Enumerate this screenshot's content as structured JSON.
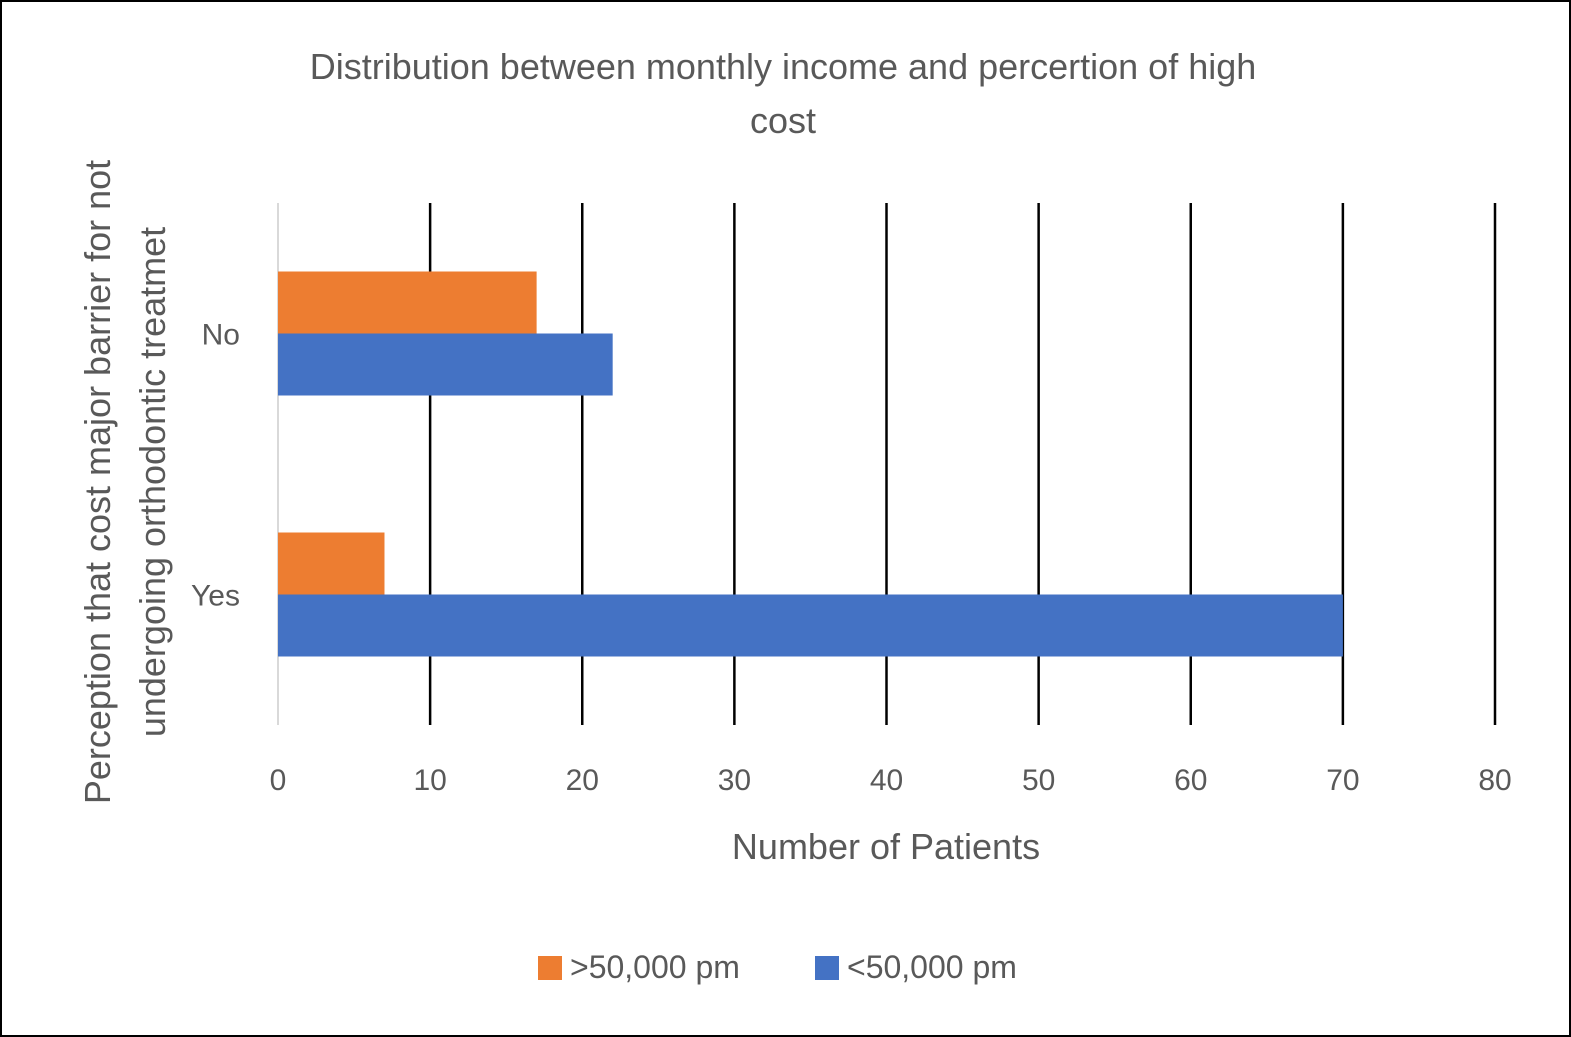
{
  "chart_data": {
    "type": "bar",
    "orientation": "horizontal",
    "title_lines": [
      "Distribution between monthly income and percertion of  high",
      "cost"
    ],
    "xlabel": "Number of Patients",
    "ylabel_lines": [
      "Perception that cost major barrier for not",
      "undergoing orthodontic treatmet"
    ],
    "categories": [
      "No",
      "Yes"
    ],
    "xlim": [
      0,
      80
    ],
    "xticks": [
      "0",
      "10",
      "20",
      "30",
      "40",
      "50",
      "60",
      "70",
      "80"
    ],
    "grid": "vertical",
    "legend_position": "bottom",
    "series": [
      {
        "name": ">50,000 pm",
        "color": "#ED7D31",
        "values": [
          17,
          7
        ]
      },
      {
        "name": "<50,000 pm",
        "color": "#4472C4",
        "values": [
          22,
          70
        ]
      }
    ]
  }
}
